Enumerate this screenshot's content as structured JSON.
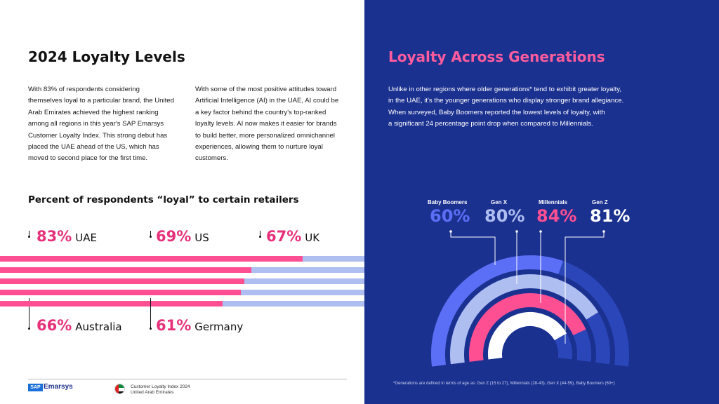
{
  "left": {
    "title": "2024 Loyalty Levels",
    "paragraph1": [
      "With 83% of respondents considering",
      "themselves loyal to a particular brand, the United",
      "Arab Emirates achieved the highest ranking",
      "among all regions in this year's SAP Emarsys",
      "Customer Loyalty Index. This strong debut has",
      "placed the UAE ahead of the US, which has",
      "moved to second place for the first time."
    ],
    "paragraph2": [
      "With some of the most positive attitudes toward",
      "Artificial Intelligence (AI) in the UAE, AI could be",
      "a key factor behind the country's top-ranked",
      "loyalty levels. AI now makes it easier for brands",
      "to build better, more personalized omnichannel",
      "experiences, allowing them to nurture loyal",
      "customers."
    ],
    "chart_title": "Percent of respondents “loyal” to certain retailers"
  },
  "right": {
    "title": "Loyalty Across Generations",
    "paragraph": [
      "Unlike in other regions where older generations* tend to exhibit greater loyalty,",
      "in the UAE, it's the younger generations who display stronger brand allegiance.",
      "When surveyed, Baby Boomers reported the lowest levels of loyalty, with",
      "a significant 24 percentage point drop when compared to Millennials."
    ],
    "footnote": "*Generations are defined in terms of age as: Gen Z (15 to 27), Millennials (28-43), Gen X (44-59), Baby Boomers (60+)"
  },
  "footer": {
    "logo_mark": "SAP",
    "logo_text": "Emarsys",
    "report_line1": "Customer Loyalty Index 2024",
    "report_line2": "United Arab Emirates"
  },
  "colors": {
    "pink": "#ff4f93",
    "pink_text": "#e6317a",
    "light_blue": "#aebef0",
    "navy": "#1b3190"
  },
  "chart_data": [
    {
      "type": "bar",
      "title": "Percent of respondents “loyal” to certain retailers",
      "categories": [
        "UAE",
        "US",
        "UK",
        "Australia",
        "Germany"
      ],
      "values": [
        83,
        69,
        67,
        66,
        61
      ],
      "labels": [
        "83%",
        "69%",
        "67%",
        "66%",
        "61%"
      ],
      "ylim": [
        0,
        100
      ]
    },
    {
      "type": "pie",
      "subtype": "concentric-arcs",
      "categories": [
        "Baby Boomers",
        "Gen X",
        "Millennials",
        "Gen Z"
      ],
      "values": [
        60,
        80,
        84,
        81
      ],
      "labels": [
        "60%",
        "80%",
        "84%",
        "81%"
      ],
      "colors": [
        "#5a6ff5",
        "#aebef0",
        "#ff4f93",
        "#ffffff"
      ]
    }
  ]
}
